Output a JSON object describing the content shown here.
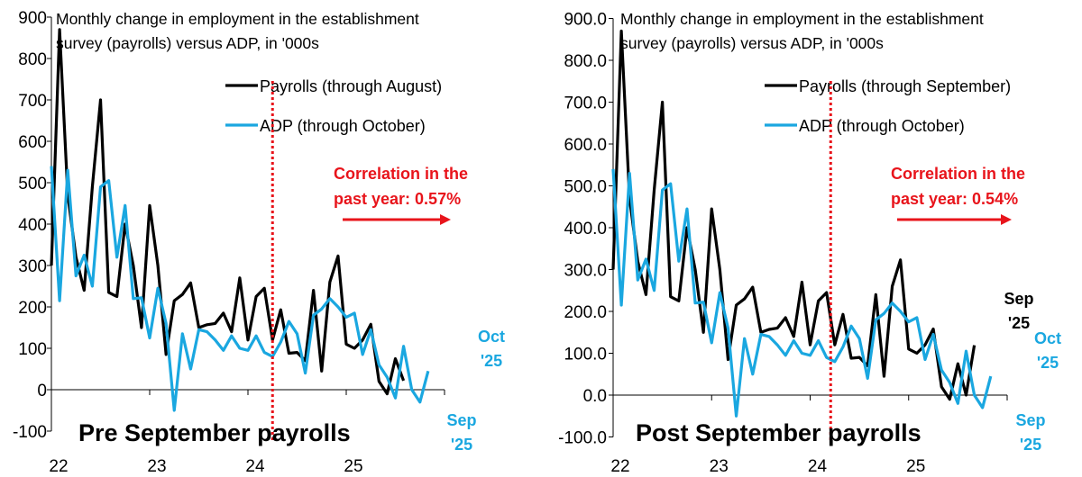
{
  "chart_data": [
    {
      "type": "line",
      "title": "Monthly change in employment in the establishment survey (payrolls) versus ADP, in '000s",
      "title_lines": [
        "Monthly change in employment in the establishment",
        "survey (payrolls) versus ADP, in '000s"
      ],
      "panel_label": "Pre September payrolls",
      "xlabel": "",
      "ylabel": "",
      "x_unit": "months since Jan 2022",
      "x_ticks": [
        {
          "label": "22",
          "value": 0
        },
        {
          "label": "23",
          "value": 12
        },
        {
          "label": "24",
          "value": 24
        },
        {
          "label": "25",
          "value": 36
        }
      ],
      "xlim": [
        0,
        48
      ],
      "ylim": [
        -100,
        900
      ],
      "y_ticks": [
        "-100",
        "0",
        "100",
        "200",
        "300",
        "400",
        "500",
        "600",
        "700",
        "800",
        "900"
      ],
      "y_tick_values": [
        -100,
        0,
        100,
        200,
        300,
        400,
        500,
        600,
        700,
        800,
        900
      ],
      "grid": false,
      "legend_position": "top-right",
      "series": [
        {
          "name": "Payrolls (through August)",
          "color": "#000000",
          "values": [
            300,
            870,
            470,
            320,
            240,
            490,
            700,
            235,
            225,
            400,
            300,
            150,
            445,
            300,
            85,
            215,
            230,
            258,
            150,
            157,
            160,
            185,
            140,
            270,
            120,
            225,
            245,
            120,
            193,
            88,
            90,
            70,
            240,
            45,
            260,
            323,
            110,
            100,
            120,
            158,
            20,
            -10,
            75,
            22
          ]
        },
        {
          "name": "ADP (through October)",
          "color": "#1aa7e0",
          "values": [
            540,
            215,
            530,
            275,
            325,
            250,
            490,
            505,
            320,
            445,
            220,
            222,
            125,
            245,
            160,
            -50,
            135,
            50,
            145,
            140,
            120,
            95,
            130,
            100,
            95,
            130,
            90,
            80,
            115,
            165,
            135,
            40,
            180,
            195,
            220,
            200,
            175,
            185,
            85,
            145,
            60,
            30,
            -20,
            105,
            0,
            -30,
            45
          ]
        }
      ],
      "vline_month": 27,
      "annotations": {
        "correlation_lines": [
          "Correlation in the",
          "past year: 0.57%"
        ],
        "correlation_color": "#e8141b",
        "labels": [
          {
            "lines": [
              "Oct",
              "'25"
            ],
            "color": "#1aa7e0",
            "series": 1,
            "point": "last"
          },
          {
            "lines": [
              "Sep",
              "'25"
            ],
            "color": "#1aa7e0",
            "series": 1,
            "point": "second-last"
          }
        ]
      }
    },
    {
      "type": "line",
      "title": "Monthly change in employment in the establishment survey (payrolls) versus ADP, in '000s",
      "title_lines": [
        "Monthly change in employment in the establishment",
        "survey (payrolls) versus ADP, in '000s"
      ],
      "panel_label": "Post September payrolls",
      "xlabel": "",
      "ylabel": "",
      "x_unit": "months since Jan 2022",
      "x_ticks": [
        {
          "label": "22",
          "value": 0
        },
        {
          "label": "23",
          "value": 12
        },
        {
          "label": "24",
          "value": 24
        },
        {
          "label": "25",
          "value": 36
        }
      ],
      "xlim": [
        0,
        48
      ],
      "ylim": [
        -100,
        900
      ],
      "y_ticks": [
        "-100.0",
        "0.0",
        "100.0",
        "200.0",
        "300.0",
        "400.0",
        "500.0",
        "600.0",
        "700.0",
        "800.0",
        "900.0"
      ],
      "y_tick_values": [
        -100,
        0,
        100,
        200,
        300,
        400,
        500,
        600,
        700,
        800,
        900
      ],
      "grid": false,
      "legend_position": "top-right",
      "series": [
        {
          "name": "Payrolls (through September)",
          "color": "#000000",
          "values": [
            300,
            870,
            470,
            320,
            240,
            490,
            700,
            235,
            225,
            400,
            300,
            150,
            445,
            300,
            85,
            215,
            230,
            258,
            150,
            157,
            160,
            185,
            140,
            270,
            120,
            225,
            245,
            120,
            193,
            88,
            90,
            70,
            240,
            45,
            260,
            323,
            110,
            100,
            120,
            158,
            20,
            -10,
            75,
            0,
            119
          ]
        },
        {
          "name": "ADP (through October)",
          "color": "#1aa7e0",
          "values": [
            540,
            215,
            530,
            275,
            325,
            250,
            490,
            505,
            320,
            445,
            220,
            222,
            125,
            245,
            160,
            -50,
            135,
            50,
            145,
            140,
            120,
            95,
            130,
            100,
            95,
            130,
            90,
            80,
            115,
            165,
            135,
            40,
            180,
            195,
            220,
            200,
            175,
            185,
            85,
            145,
            60,
            30,
            -20,
            105,
            0,
            -30,
            45
          ]
        }
      ],
      "vline_month": 26.5,
      "annotations": {
        "correlation_lines": [
          "Correlation in the",
          "past year: 0.54%"
        ],
        "correlation_color": "#e8141b",
        "labels": [
          {
            "lines": [
              "Sep",
              "'25"
            ],
            "color": "#000000",
            "series": 0,
            "point": "last"
          },
          {
            "lines": [
              "Oct",
              "'25"
            ],
            "color": "#1aa7e0",
            "series": 1,
            "point": "last"
          },
          {
            "lines": [
              "Sep",
              "'25"
            ],
            "color": "#1aa7e0",
            "series": 1,
            "point": "second-last"
          }
        ]
      }
    }
  ]
}
